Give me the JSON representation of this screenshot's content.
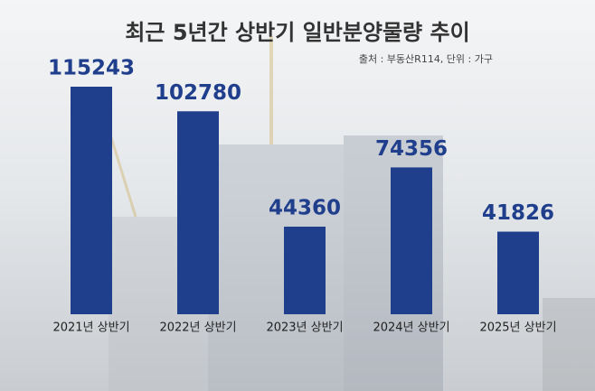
{
  "chart_data": {
    "type": "bar",
    "title": "최근 5년간 상반기 일반분양물량 추이",
    "subtitle": "출처 : 부동산R114, 단위 : 가구",
    "categories": [
      "2021년 상반기",
      "2022년 상반기",
      "2023년 상반기",
      "2024년 상반기",
      "2025년 상반기"
    ],
    "values": [
      115243,
      102780,
      44360,
      74356,
      41826
    ],
    "color": "#1f3e8c"
  }
}
